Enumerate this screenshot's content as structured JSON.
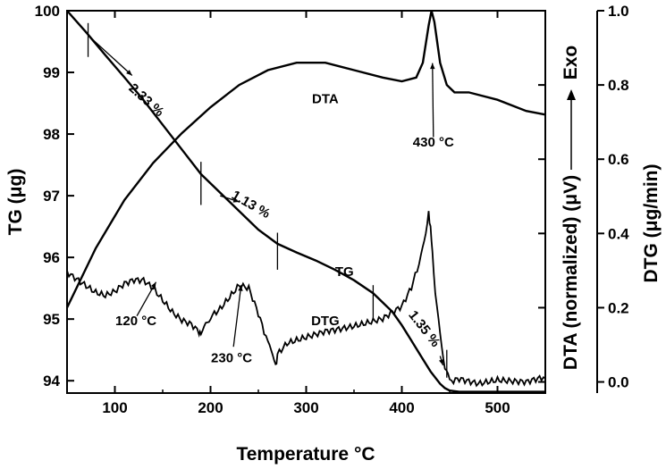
{
  "chart_data": {
    "type": "line",
    "title": "",
    "xlabel": "Temperature",
    "xlabel_unit": "°C",
    "ylabel_left": "TG (μg)",
    "ylabel_right_dta": "DTA (normalized) (μV)",
    "ylabel_right_dtg": "DTG (μg/min)",
    "exo_label": "Exo",
    "xlim": [
      50,
      550
    ],
    "ylim_left": [
      93.8,
      100
    ],
    "ylim_right": [
      -0.03,
      1.0
    ],
    "x_ticks": [
      100,
      200,
      300,
      400,
      500
    ],
    "y_left_ticks": [
      94,
      95,
      96,
      97,
      98,
      99,
      100
    ],
    "y_right_ticks": [
      "0.0",
      "0.2",
      "0.4",
      "0.6",
      "0.8",
      "1.0"
    ],
    "series": [
      {
        "name": "TG",
        "axis": "left",
        "x": [
          50,
          70,
          90,
          110,
          130,
          150,
          170,
          190,
          210,
          230,
          250,
          270,
          290,
          310,
          330,
          350,
          370,
          390,
          400,
          410,
          420,
          430,
          440,
          445,
          450,
          460,
          480,
          500,
          550
        ],
        "y": [
          100.0,
          99.65,
          99.28,
          98.92,
          98.55,
          98.15,
          97.75,
          97.35,
          97.05,
          96.75,
          96.45,
          96.22,
          96.08,
          95.95,
          95.8,
          95.63,
          95.42,
          95.12,
          94.9,
          94.65,
          94.4,
          94.15,
          93.95,
          93.88,
          93.84,
          93.82,
          93.82,
          93.82,
          93.82
        ]
      },
      {
        "name": "DTA",
        "axis": "right",
        "x": [
          50,
          80,
          110,
          140,
          170,
          200,
          230,
          260,
          290,
          320,
          350,
          380,
          400,
          415,
          422,
          428,
          431,
          434,
          440,
          447,
          455,
          470,
          500,
          530,
          550
        ],
        "y": [
          0.2,
          0.36,
          0.49,
          0.59,
          0.67,
          0.74,
          0.8,
          0.84,
          0.86,
          0.86,
          0.84,
          0.82,
          0.81,
          0.82,
          0.86,
          0.96,
          1.0,
          0.97,
          0.86,
          0.8,
          0.78,
          0.78,
          0.76,
          0.73,
          0.72
        ]
      },
      {
        "name": "DTG",
        "axis": "right",
        "x": [
          50,
          60,
          70,
          80,
          90,
          100,
          110,
          120,
          130,
          140,
          150,
          160,
          170,
          180,
          188,
          190,
          195,
          200,
          210,
          220,
          230,
          240,
          250,
          260,
          265,
          268,
          270,
          280,
          300,
          320,
          340,
          360,
          380,
          400,
          410,
          420,
          425,
          428,
          430,
          432,
          435,
          440,
          445,
          450,
          460,
          480,
          500,
          530,
          550
        ],
        "y": [
          0.3,
          0.28,
          0.26,
          0.24,
          0.23,
          0.24,
          0.26,
          0.27,
          0.27,
          0.25,
          0.22,
          0.19,
          0.17,
          0.16,
          0.14,
          0.13,
          0.16,
          0.18,
          0.2,
          0.23,
          0.26,
          0.25,
          0.18,
          0.1,
          0.07,
          0.05,
          0.07,
          0.1,
          0.12,
          0.14,
          0.15,
          0.16,
          0.17,
          0.2,
          0.25,
          0.33,
          0.4,
          0.46,
          0.42,
          0.34,
          0.25,
          0.13,
          0.03,
          0.0,
          0.01,
          0.0,
          0.01,
          0.0,
          0.01
        ]
      }
    ],
    "annotations": [
      {
        "text": "2.33 %",
        "x": 130,
        "y_left": 98.5
      },
      {
        "text": "1.13 %",
        "x": 240,
        "y_left": 96.8
      },
      {
        "text": "1.35 %",
        "x": 420,
        "y_left": 94.8
      },
      {
        "text": "DTA",
        "x": 320,
        "y_left": 98.5
      },
      {
        "text": "TG",
        "x": 340,
        "y_left": 95.7
      },
      {
        "text": "DTG",
        "x": 320,
        "y_left": 94.9
      },
      {
        "text": "430 °C",
        "x": 433,
        "y_left": 97.8
      },
      {
        "text": "120 °C",
        "x": 122,
        "y_left": 94.9
      },
      {
        "text": "230 °C",
        "x": 222,
        "y_left": 94.3
      }
    ]
  }
}
